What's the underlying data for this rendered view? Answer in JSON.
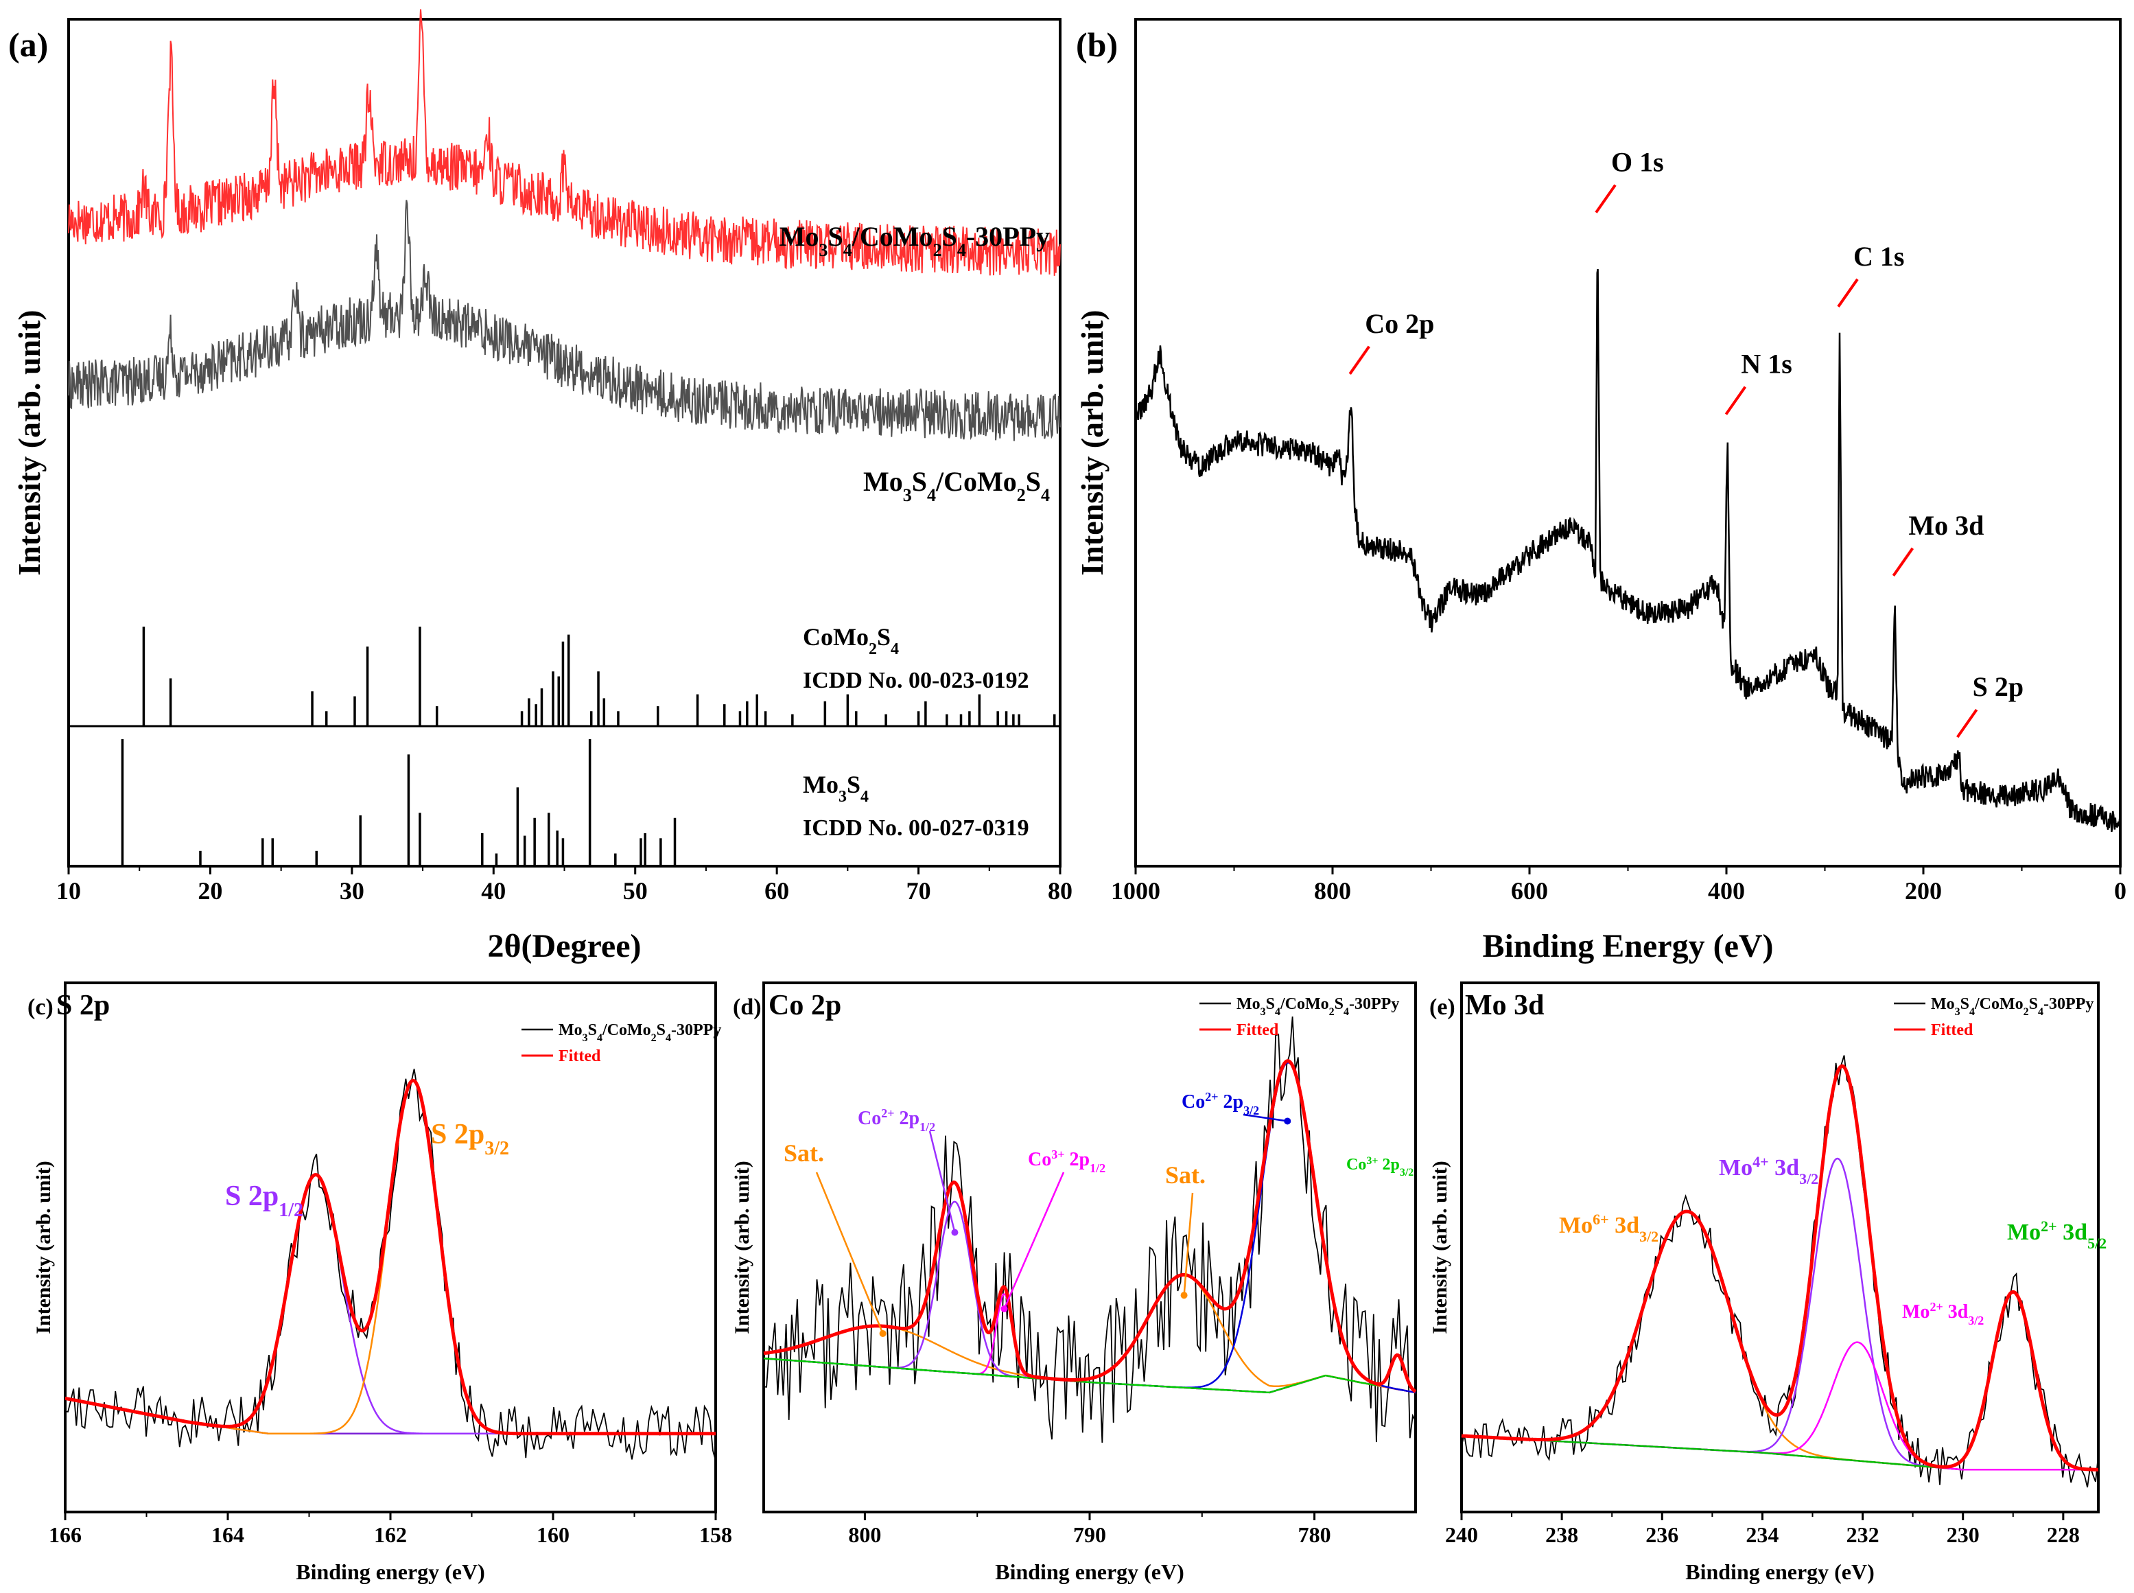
{
  "figure": {
    "description_labels": [
      "(a)",
      "(b)",
      "(c)",
      "(d)",
      "(e)"
    ]
  },
  "chart_data": [
    {
      "id": "a",
      "panel_label": "(a)",
      "type": "line",
      "xlabel": "2θ(Degree)",
      "ylabel": "Intensity (arb. unit)",
      "xlim": [
        10,
        80
      ],
      "xticks": [
        10,
        20,
        30,
        40,
        50,
        60,
        70,
        80
      ],
      "series": [
        {
          "name": "Mo3S4/CoMo2S4-30PPy",
          "label_parts": [
            "Mo",
            "3",
            "S",
            "4",
            "/CoMo",
            "2",
            "S",
            "4",
            "-30PPy"
          ],
          "color": "#ff3030",
          "baseline": 0.72,
          "hump_center": 34,
          "hump_height": 0.13,
          "peaks": [
            [
              15.3,
              0.05
            ],
            [
              17.2,
              0.28
            ],
            [
              24.5,
              0.18
            ],
            [
              31.2,
              0.12
            ],
            [
              34.9,
              0.25
            ],
            [
              39.6,
              0.08
            ],
            [
              45.0,
              0.07
            ]
          ]
        },
        {
          "name": "Mo3S4/CoMo2S4",
          "label_parts": [
            "Mo",
            "3",
            "S",
            "4",
            "/CoMo",
            "2",
            "S",
            "4"
          ],
          "color": "#505050",
          "baseline": 0.42,
          "hump_center": 34,
          "hump_height": 0.15,
          "peaks": [
            [
              17.2,
              0.07
            ],
            [
              26.0,
              0.09
            ],
            [
              31.7,
              0.12
            ],
            [
              33.9,
              0.18
            ],
            [
              35.2,
              0.08
            ]
          ]
        }
      ],
      "references": [
        {
          "name": "CoMo2S4",
          "label_parts": [
            "CoMo",
            "2",
            "S",
            "4"
          ],
          "card": "ICDD No. 00-023-0192",
          "lines": [
            [
              15.3,
              1.0
            ],
            [
              17.2,
              0.48
            ],
            [
              27.2,
              0.35
            ],
            [
              28.2,
              0.15
            ],
            [
              30.2,
              0.3
            ],
            [
              31.1,
              0.8
            ],
            [
              34.8,
              1.0
            ],
            [
              36.0,
              0.2
            ],
            [
              42.0,
              0.15
            ],
            [
              42.5,
              0.28
            ],
            [
              43.0,
              0.22
            ],
            [
              43.4,
              0.38
            ],
            [
              44.2,
              0.55
            ],
            [
              44.6,
              0.5
            ],
            [
              44.9,
              0.85
            ],
            [
              45.3,
              0.92
            ],
            [
              46.9,
              0.15
            ],
            [
              47.4,
              0.55
            ],
            [
              47.8,
              0.28
            ],
            [
              48.8,
              0.15
            ],
            [
              51.6,
              0.2
            ],
            [
              54.4,
              0.32
            ],
            [
              56.3,
              0.22
            ],
            [
              57.4,
              0.15
            ],
            [
              57.9,
              0.25
            ],
            [
              58.6,
              0.32
            ],
            [
              59.2,
              0.15
            ],
            [
              61.1,
              0.12
            ],
            [
              63.4,
              0.25
            ],
            [
              65.0,
              0.32
            ],
            [
              65.6,
              0.15
            ],
            [
              67.7,
              0.12
            ],
            [
              70.0,
              0.15
            ],
            [
              70.5,
              0.25
            ],
            [
              72.0,
              0.12
            ],
            [
              73.0,
              0.12
            ],
            [
              73.6,
              0.15
            ],
            [
              74.3,
              0.32
            ],
            [
              75.6,
              0.15
            ],
            [
              76.2,
              0.15
            ],
            [
              76.7,
              0.12
            ],
            [
              77.1,
              0.12
            ],
            [
              79.6,
              0.12
            ]
          ]
        },
        {
          "name": "Mo3S4",
          "label_parts": [
            "Mo",
            "3",
            "S",
            "4"
          ],
          "card": "ICDD No. 00-027-0319",
          "lines": [
            [
              13.8,
              1.0
            ],
            [
              19.3,
              0.12
            ],
            [
              23.7,
              0.22
            ],
            [
              24.4,
              0.22
            ],
            [
              27.5,
              0.12
            ],
            [
              30.6,
              0.4
            ],
            [
              34.0,
              0.88
            ],
            [
              34.8,
              0.42
            ],
            [
              39.2,
              0.26
            ],
            [
              40.2,
              0.1
            ],
            [
              41.7,
              0.62
            ],
            [
              42.2,
              0.24
            ],
            [
              42.9,
              0.38
            ],
            [
              43.9,
              0.42
            ],
            [
              44.5,
              0.28
            ],
            [
              44.9,
              0.22
            ],
            [
              46.8,
              1.0
            ],
            [
              48.6,
              0.1
            ],
            [
              50.4,
              0.22
            ],
            [
              50.7,
              0.26
            ],
            [
              51.8,
              0.22
            ],
            [
              52.8,
              0.38
            ]
          ]
        }
      ]
    },
    {
      "id": "b",
      "panel_label": "(b)",
      "type": "line",
      "xlabel": "Binding Energy (eV)",
      "ylabel": "Intensity (arb. unit)",
      "xlim": [
        1000,
        0
      ],
      "ylim": [
        0,
        1
      ],
      "xticks": [
        1000,
        800,
        600,
        400,
        200,
        0
      ],
      "survey_profile": [
        [
          1000,
          0.6
        ],
        [
          985,
          0.64
        ],
        [
          975,
          0.7
        ],
        [
          968,
          0.64
        ],
        [
          955,
          0.56
        ],
        [
          935,
          0.53
        ],
        [
          900,
          0.57
        ],
        [
          860,
          0.56
        ],
        [
          820,
          0.55
        ],
        [
          800,
          0.53
        ],
        [
          795,
          0.56
        ],
        [
          790,
          0.51
        ],
        [
          785,
          0.54
        ],
        [
          781,
          0.64
        ],
        [
          778,
          0.48
        ],
        [
          773,
          0.42
        ],
        [
          750,
          0.41
        ],
        [
          720,
          0.4
        ],
        [
          710,
          0.33
        ],
        [
          700,
          0.3
        ],
        [
          680,
          0.35
        ],
        [
          650,
          0.34
        ],
        [
          600,
          0.4
        ],
        [
          560,
          0.44
        ],
        [
          540,
          0.42
        ],
        [
          533,
          0.38
        ],
        [
          531,
          0.88
        ],
        [
          528,
          0.36
        ],
        [
          520,
          0.35
        ],
        [
          480,
          0.31
        ],
        [
          440,
          0.32
        ],
        [
          410,
          0.36
        ],
        [
          402,
          0.29
        ],
        [
          399,
          0.58
        ],
        [
          396,
          0.24
        ],
        [
          380,
          0.2
        ],
        [
          340,
          0.23
        ],
        [
          310,
          0.25
        ],
        [
          295,
          0.2
        ],
        [
          287,
          0.2
        ],
        [
          285,
          0.74
        ],
        [
          282,
          0.17
        ],
        [
          260,
          0.15
        ],
        [
          240,
          0.13
        ],
        [
          232,
          0.12
        ],
        [
          229,
          0.34
        ],
        [
          226,
          0.1
        ],
        [
          220,
          0.06
        ],
        [
          200,
          0.07
        ],
        [
          175,
          0.07
        ],
        [
          164,
          0.1
        ],
        [
          160,
          0.05
        ],
        [
          120,
          0.04
        ],
        [
          80,
          0.05
        ],
        [
          62,
          0.07
        ],
        [
          50,
          0.02
        ],
        [
          20,
          0.01
        ],
        [
          0,
          0.0
        ]
      ],
      "annotations": [
        {
          "text": "Co 2p",
          "x": 781,
          "y": 0.64
        },
        {
          "text": "O 1s",
          "x": 531,
          "y": 0.88
        },
        {
          "text": "N 1s",
          "x": 399,
          "y": 0.58
        },
        {
          "text": "C 1s",
          "x": 285,
          "y": 0.74
        },
        {
          "text": "Mo 3d",
          "x": 229,
          "y": 0.34
        },
        {
          "text": "S 2p",
          "x": 164,
          "y": 0.1
        }
      ]
    },
    {
      "id": "c",
      "panel_label": "(c)",
      "title": "S 2p",
      "type": "line",
      "xlabel": "Binding energy (eV)",
      "ylabel": "Intensity (arb. unit)",
      "xlim": [
        166,
        158
      ],
      "ylim": [
        -0.2,
        1.15
      ],
      "xticks": [
        166,
        164,
        162,
        160,
        158
      ],
      "legend": [
        "Mo3S4/CoMo2S4-30PPy",
        "Fitted"
      ],
      "legend_parts": [
        "Mo",
        "3",
        "S",
        "4",
        "/CoMo",
        "2",
        "S",
        "4",
        "-30PPy"
      ],
      "background": [
        [
          166,
          0.09
        ],
        [
          164.5,
          0.03
        ],
        [
          163.5,
          0.0
        ],
        [
          158,
          0.0
        ]
      ],
      "components": [
        {
          "name": "S 2p1/2",
          "label_parts": [
            "S 2p",
            "1/2"
          ],
          "center": 162.92,
          "height": 0.66,
          "width": 0.33,
          "color": "#9b30ff"
        },
        {
          "name": "S 2p3/2",
          "label_parts": [
            "S 2p",
            "3/2"
          ],
          "center": 161.72,
          "height": 0.9,
          "width": 0.31,
          "color": "#ff8c00"
        }
      ]
    },
    {
      "id": "d",
      "panel_label": "(d)",
      "title": "Co 2p",
      "type": "line",
      "xlabel": "Binding energy (eV)",
      "ylabel": "Intensity (arb. unit)",
      "xlim": [
        804.5,
        775.5
      ],
      "ylim": [
        -0.35,
        1.2
      ],
      "xticks": [
        800,
        790,
        780
      ],
      "legend": [
        "Mo3S4/CoMo2S4-30PPy",
        "Fitted"
      ],
      "legend_parts": [
        "Mo",
        "3",
        "S",
        "4",
        "/CoMo",
        "2",
        "S",
        "4",
        "-30PPy"
      ],
      "background": [
        [
          804.5,
          0.1
        ],
        [
          790,
          0.03
        ],
        [
          782,
          0.0
        ],
        [
          779.5,
          0.05
        ],
        [
          778,
          0.03
        ],
        [
          775.5,
          0.0
        ]
      ],
      "components": [
        {
          "name": "Sat.",
          "label_parts": [
            "Sat."
          ],
          "center": 799.2,
          "height": 0.12,
          "width": 2.6,
          "color": "#ff8c00"
        },
        {
          "name": "Co2+ 2p1/2",
          "label_parts": [
            "Co",
            "2+",
            " 2p",
            "1/2"
          ],
          "center": 796.0,
          "height": 0.5,
          "width": 0.75,
          "color": "#9b30ff"
        },
        {
          "name": "Co3+ 2p1/2",
          "label_parts": [
            "Co",
            "3+",
            " 2p",
            "1/2"
          ],
          "center": 793.8,
          "height": 0.24,
          "width": 0.35,
          "color": "#ff00ff"
        },
        {
          "name": "Sat.",
          "label_parts": [
            "Sat."
          ],
          "center": 785.8,
          "height": 0.33,
          "width": 1.6,
          "color": "#ff8c00"
        },
        {
          "name": "Co2+ 2p3/2",
          "label_parts": [
            "Co",
            "2+",
            " 2p",
            "3/2"
          ],
          "center": 781.2,
          "height": 0.95,
          "width": 1.2,
          "color": "#0000dd"
        },
        {
          "name": "Co3+ 2p3/2",
          "label_parts": [
            "Co",
            "3+",
            " 2p",
            "3/2"
          ],
          "center": 776.3,
          "height": 0.1,
          "width": 0.3,
          "color": "#00cc00"
        }
      ]
    },
    {
      "id": "e",
      "panel_label": "(e)",
      "title": "Mo 3d",
      "type": "line",
      "xlabel": "Binding energy (eV)",
      "ylabel": "Intensity (arb. unit)",
      "xlim": [
        240,
        227.3
      ],
      "ylim": [
        -0.1,
        1.15
      ],
      "xticks": [
        240,
        238,
        236,
        234,
        232,
        230,
        228
      ],
      "legend": [
        "Mo3S4/CoMo2S4-30PPy",
        "Fitted"
      ],
      "legend_parts": [
        "Mo",
        "3",
        "S",
        "4",
        "/CoMo",
        "2",
        "S",
        "4",
        "-30PPy"
      ],
      "background": [
        [
          240,
          0.08
        ],
        [
          234,
          0.04
        ],
        [
          230,
          0.0
        ],
        [
          227.3,
          0.0
        ]
      ],
      "components": [
        {
          "name": "Mo6+ 3d3/2",
          "label_parts": [
            "Mo",
            "6+",
            " 3d",
            "3/2"
          ],
          "center": 235.5,
          "height": 0.56,
          "width": 0.85,
          "color": "#ff8c00"
        },
        {
          "name": "Mo4+ 3d3/2",
          "label_parts": [
            "Mo",
            "4+",
            " 3d",
            "3/2"
          ],
          "center": 232.5,
          "height": 0.71,
          "width": 0.48,
          "color": "#9b30ff"
        },
        {
          "name": "Mo2+ 3d3/2",
          "label_parts": [
            "Mo",
            "2+",
            " 3d",
            "3/2"
          ],
          "center": 232.1,
          "height": 0.28,
          "width": 0.5,
          "color": "#ff00ff"
        },
        {
          "name": "Mo2+ 3d5/2",
          "label_parts": [
            "Mo",
            "2+",
            " 3d",
            "5/2"
          ],
          "center": 229.0,
          "height": 0.42,
          "width": 0.42,
          "color": "#00bb00"
        }
      ]
    }
  ]
}
